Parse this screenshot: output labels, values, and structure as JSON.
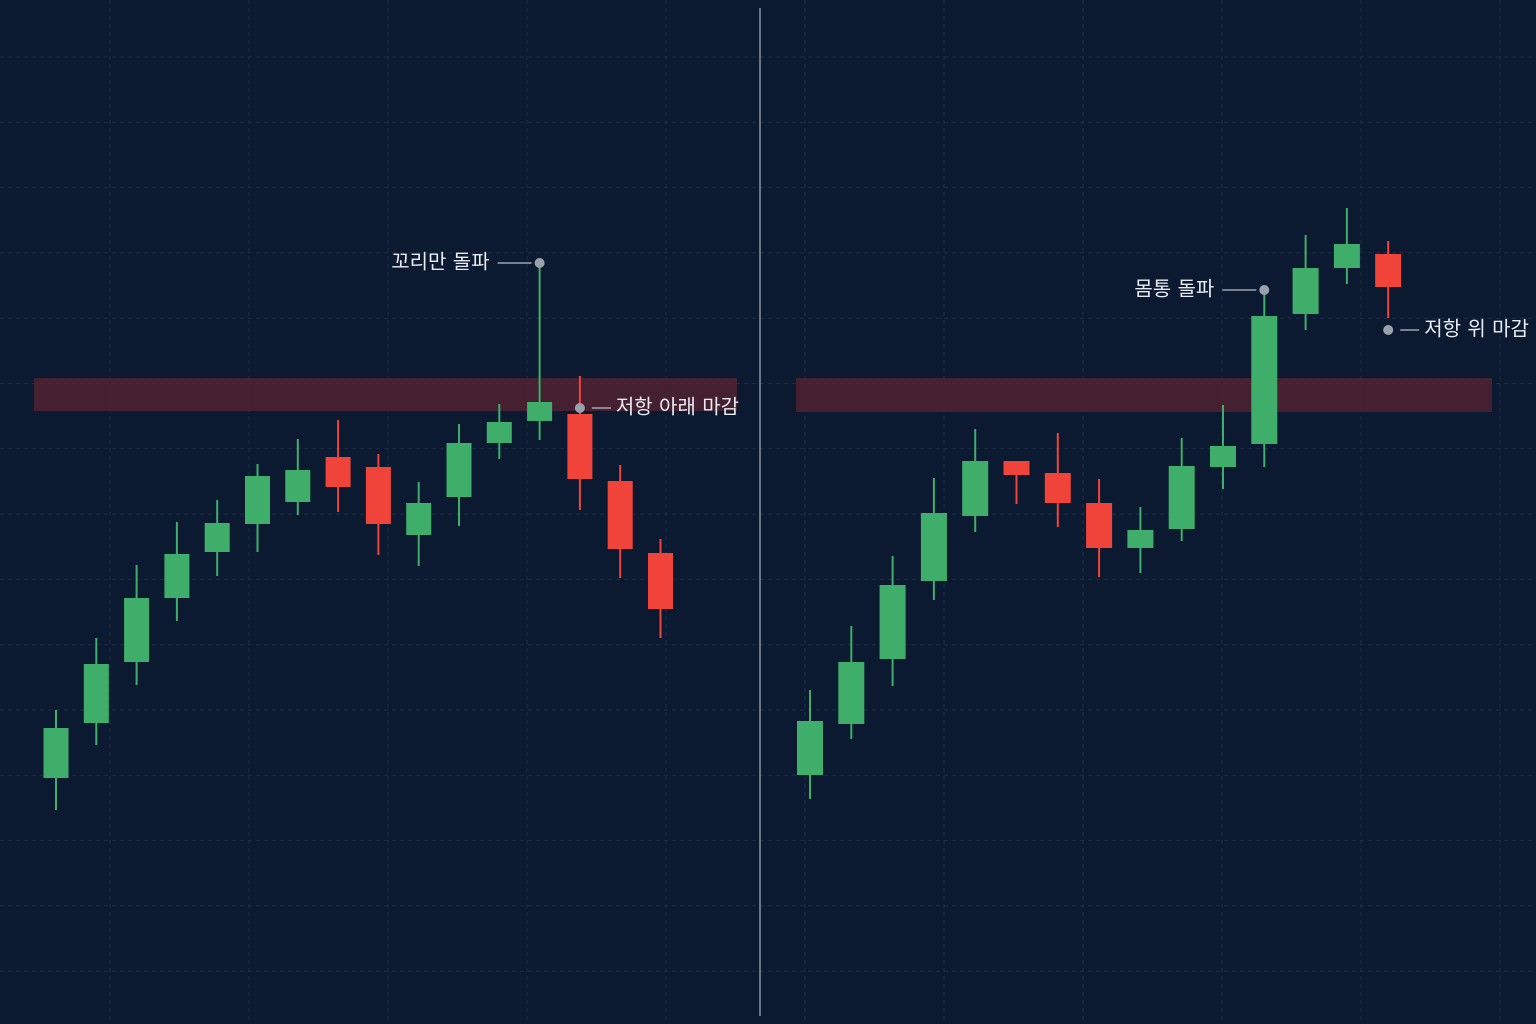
{
  "charts": [
    {
      "type": "candlestick",
      "ylim": [
        0,
        100
      ],
      "up_color": "#3fae6a",
      "down_color": "#f0443a",
      "zone": {
        "range": [
          61.3,
          64.6
        ],
        "color": "#5a2330"
      },
      "open": [
        24.6,
        30.1,
        36.2,
        42.6,
        47.2,
        50.0,
        52.2,
        56.7,
        55.7,
        48.9,
        52.7,
        58.1,
        60.3,
        61.0,
        54.3,
        47.1
      ],
      "high": [
        31.4,
        38.6,
        45.9,
        50.2,
        52.4,
        56.0,
        58.5,
        60.4,
        57.0,
        54.2,
        60.0,
        62.0,
        76.1,
        64.8,
        55.9,
        48.5
      ],
      "low": [
        21.4,
        27.9,
        33.9,
        40.3,
        44.8,
        47.2,
        50.9,
        51.2,
        46.9,
        45.8,
        49.8,
        56.5,
        58.4,
        51.4,
        44.6,
        38.6
      ],
      "close": [
        29.6,
        36.0,
        42.6,
        47.0,
        50.1,
        54.8,
        55.4,
        53.7,
        50.0,
        52.1,
        58.1,
        60.2,
        62.2,
        54.5,
        47.5,
        41.5
      ],
      "annotations": [
        {
          "text": "꼬리만 돌파",
          "index": 12,
          "value": 76.1,
          "side": "left"
        },
        {
          "text": "저항 아래 마감",
          "index": 13,
          "value": 61.6,
          "side": "right"
        }
      ]
    },
    {
      "type": "candlestick",
      "ylim": [
        0,
        100
      ],
      "up_color": "#3fae6a",
      "down_color": "#f0443a",
      "zone": {
        "range": [
          61.2,
          64.6
        ],
        "color": "#5a2330"
      },
      "open": [
        24.9,
        30.0,
        36.5,
        44.3,
        50.8,
        56.3,
        55.1,
        52.1,
        47.6,
        49.5,
        55.7,
        58.0,
        71.0,
        75.6,
        77.0
      ],
      "high": [
        33.4,
        39.8,
        46.8,
        54.6,
        59.5,
        56.3,
        59.1,
        54.5,
        51.7,
        58.6,
        61.9,
        73.4,
        78.9,
        81.6,
        78.3
      ],
      "low": [
        22.5,
        28.5,
        33.8,
        42.4,
        49.2,
        52.0,
        49.7,
        44.7,
        45.1,
        48.3,
        53.5,
        55.7,
        69.4,
        74.0,
        70.6
      ],
      "close": [
        30.3,
        36.2,
        43.9,
        51.1,
        56.3,
        54.9,
        52.1,
        47.6,
        49.4,
        55.8,
        57.8,
        70.8,
        75.6,
        78.0,
        73.7
      ],
      "annotations": [
        {
          "text": "몸통 돌파",
          "index": 11,
          "value": 73.4,
          "side": "left"
        },
        {
          "text": "저항 위 마감",
          "index": 14,
          "value": 69.4,
          "side": "right"
        }
      ]
    }
  ]
}
